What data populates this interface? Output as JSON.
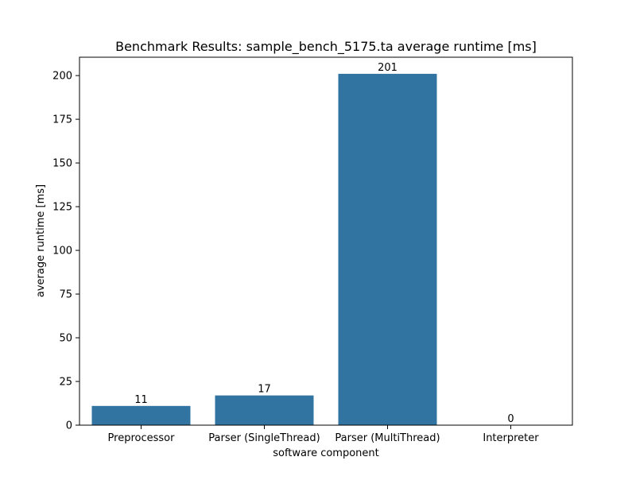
{
  "chart_data": {
    "type": "bar",
    "title": "Benchmark Results: sample_bench_5175.ta average runtime [ms]",
    "xlabel": "software component",
    "ylabel": "average runtime [ms]",
    "categories": [
      "Preprocessor",
      "Parser (SingleThread)",
      "Parser (MultiThread)",
      "Interpreter"
    ],
    "values": [
      11,
      17,
      201,
      0
    ],
    "value_labels": [
      "11",
      "17",
      "201",
      "0"
    ],
    "ylim": [
      0,
      210.5
    ],
    "yticks": [
      0,
      25,
      50,
      75,
      100,
      125,
      150,
      175,
      200
    ],
    "ytick_labels": [
      "0",
      "25",
      "50",
      "75",
      "100",
      "125",
      "150",
      "175",
      "200"
    ],
    "bar_color": "#3274a1",
    "grid": false,
    "legend": "none"
  }
}
